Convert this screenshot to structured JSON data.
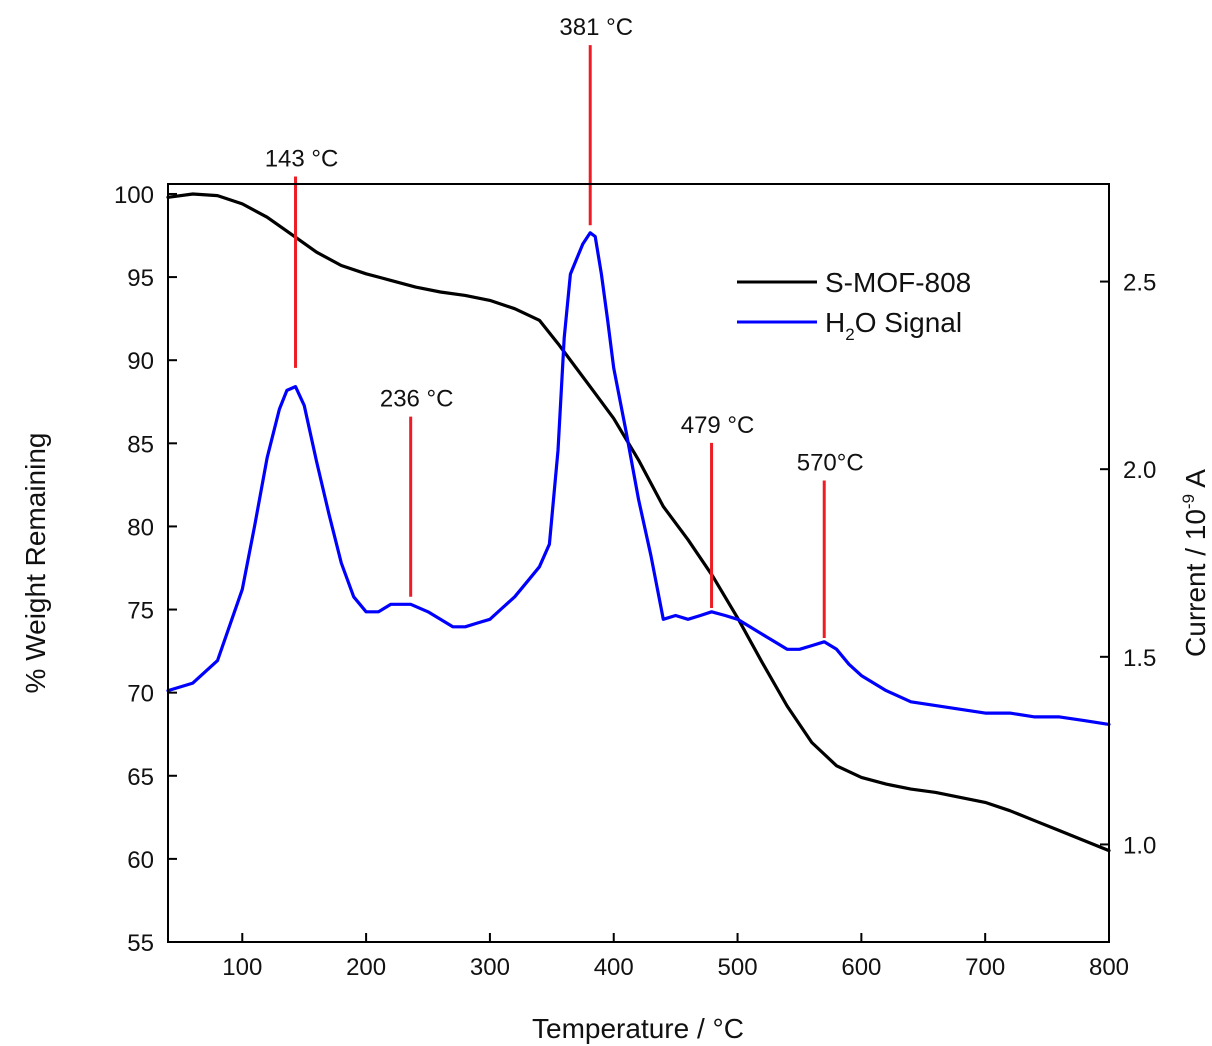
{
  "chart_data": {
    "type": "line",
    "title": "",
    "xlabel": "Temperature / °C",
    "ylabel_left": "% Weight Remaining",
    "ylabel_right_prefix": "Current / 10",
    "ylabel_right_exp": "-9",
    "ylabel_right_suffix": " A",
    "xlim": [
      40,
      800
    ],
    "ylim_left": [
      55,
      100.6
    ],
    "ylim_right": [
      0.74,
      2.76
    ],
    "x_ticks": [
      100,
      200,
      300,
      400,
      500,
      600,
      700,
      800
    ],
    "y_left_ticks": [
      55,
      60,
      65,
      70,
      75,
      80,
      85,
      90,
      95,
      100
    ],
    "y_right_ticks": [
      "1.0",
      "1.5",
      "2.0",
      "2.5"
    ],
    "grid": false,
    "legend": {
      "position": "top-right",
      "entries": [
        {
          "label": "S-MOF-808",
          "color": "#000000"
        },
        {
          "label_main": "H",
          "label_sub": "2",
          "label_rest": "O Signal",
          "color": "#0000ff"
        }
      ]
    },
    "series": [
      {
        "name": "S-MOF-808",
        "axis": "left",
        "color": "#000000",
        "x": [
          40,
          60,
          80,
          100,
          120,
          143,
          160,
          180,
          200,
          220,
          240,
          260,
          280,
          300,
          320,
          340,
          355,
          370,
          385,
          400,
          420,
          440,
          460,
          480,
          500,
          520,
          540,
          560,
          580,
          600,
          620,
          640,
          660,
          680,
          700,
          720,
          740,
          760,
          780,
          800
        ],
        "y": [
          99.8,
          100.0,
          99.9,
          99.4,
          98.6,
          97.4,
          96.5,
          95.7,
          95.2,
          94.8,
          94.4,
          94.1,
          93.9,
          93.6,
          93.1,
          92.4,
          91.0,
          89.5,
          88.0,
          86.5,
          84.0,
          81.2,
          79.2,
          77.0,
          74.5,
          71.8,
          69.2,
          67.0,
          65.6,
          64.9,
          64.5,
          64.2,
          64.0,
          63.7,
          63.4,
          62.9,
          62.3,
          61.7,
          61.1,
          60.5
        ]
      },
      {
        "name": "H2O Signal",
        "axis": "right",
        "color": "#0000ff",
        "x": [
          40,
          60,
          80,
          100,
          110,
          120,
          130,
          136,
          143,
          150,
          160,
          170,
          180,
          190,
          200,
          210,
          220,
          236,
          250,
          260,
          270,
          280,
          290,
          300,
          310,
          320,
          330,
          340,
          348,
          355,
          360,
          365,
          370,
          375,
          381,
          385,
          390,
          395,
          400,
          410,
          420,
          430,
          440,
          450,
          460,
          470,
          479,
          490,
          500,
          510,
          520,
          530,
          540,
          550,
          560,
          570,
          580,
          590,
          600,
          620,
          640,
          660,
          680,
          700,
          720,
          740,
          760,
          780,
          800
        ],
        "y": [
          1.41,
          1.43,
          1.49,
          1.68,
          1.85,
          2.03,
          2.16,
          2.21,
          2.22,
          2.17,
          2.02,
          1.88,
          1.75,
          1.66,
          1.62,
          1.62,
          1.64,
          1.64,
          1.62,
          1.6,
          1.58,
          1.58,
          1.59,
          1.6,
          1.63,
          1.66,
          1.7,
          1.74,
          1.8,
          2.05,
          2.35,
          2.52,
          2.56,
          2.6,
          2.63,
          2.62,
          2.52,
          2.4,
          2.27,
          2.1,
          1.92,
          1.77,
          1.6,
          1.61,
          1.6,
          1.61,
          1.62,
          1.61,
          1.6,
          1.58,
          1.56,
          1.54,
          1.52,
          1.52,
          1.53,
          1.54,
          1.52,
          1.48,
          1.45,
          1.41,
          1.38,
          1.37,
          1.36,
          1.35,
          1.35,
          1.34,
          1.34,
          1.33,
          1.32
        ]
      }
    ],
    "annotations": [
      {
        "label": "143 °C",
        "x": 143,
        "y_top": 2.78,
        "y_bottom": 2.27
      },
      {
        "label": "236 °C",
        "x": 236,
        "y_top": 2.14,
        "y_bottom": 1.66
      },
      {
        "label": "381 °C",
        "x": 381,
        "y_top": 3.13,
        "y_bottom": 2.65
      },
      {
        "label": "479 °C",
        "x": 479,
        "y_top": 2.07,
        "y_bottom": 1.63
      },
      {
        "label": "570°C",
        "x": 570,
        "y_top": 1.97,
        "y_bottom": 1.55
      }
    ],
    "annotation_color": "#ee1c24"
  }
}
